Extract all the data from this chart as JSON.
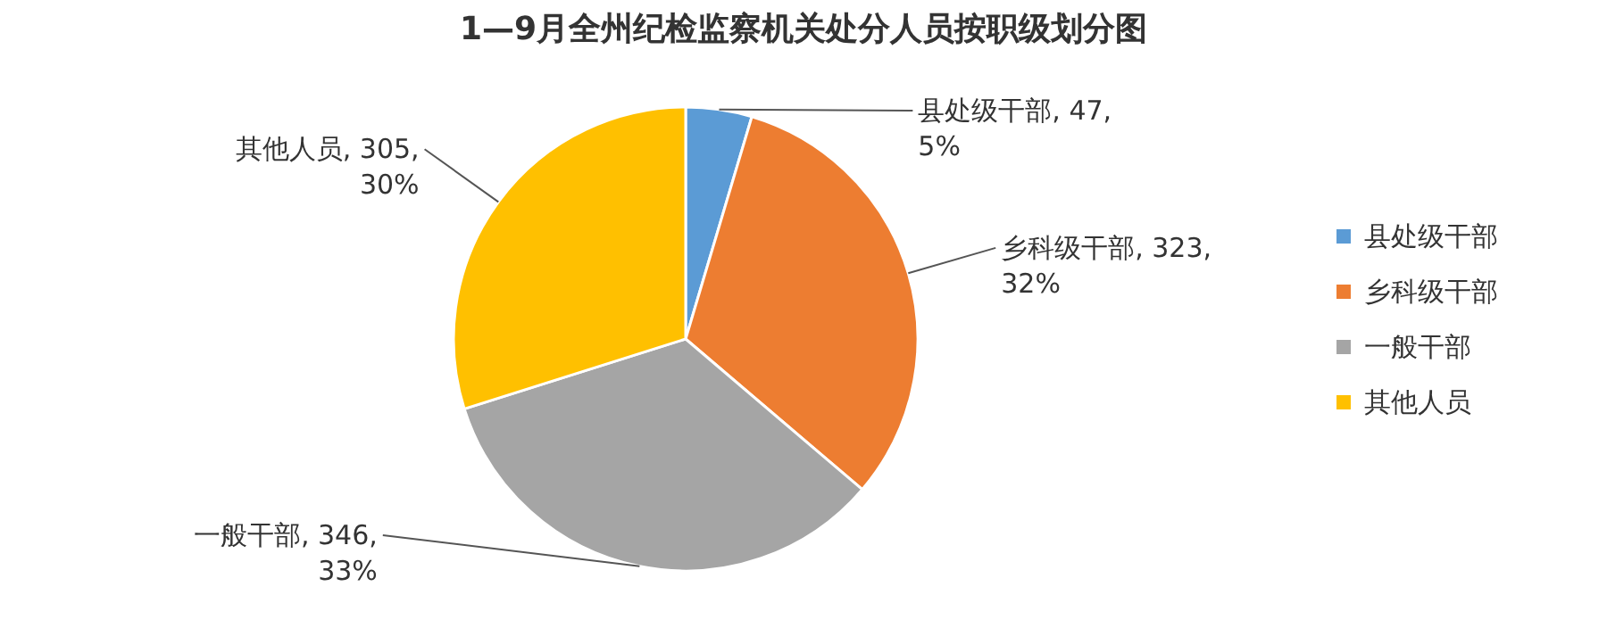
{
  "chart_data": {
    "type": "pie",
    "title": "1—9月全州纪检监察机关处分人员按职级划分图",
    "categories": [
      "县处级干部",
      "乡科级干部",
      "一般干部",
      "其他人员"
    ],
    "values": [
      47,
      323,
      346,
      305
    ],
    "colors": [
      "#5b9bd5",
      "#ed7d31",
      "#a5a5a5",
      "#ffc000"
    ],
    "value_labels": [
      "县处级干部, 47, 5%",
      "乡科级干部, 323, 32%",
      "一般干部, 346, 33%",
      "其他人员, 305, 30%"
    ],
    "legend": "right"
  }
}
